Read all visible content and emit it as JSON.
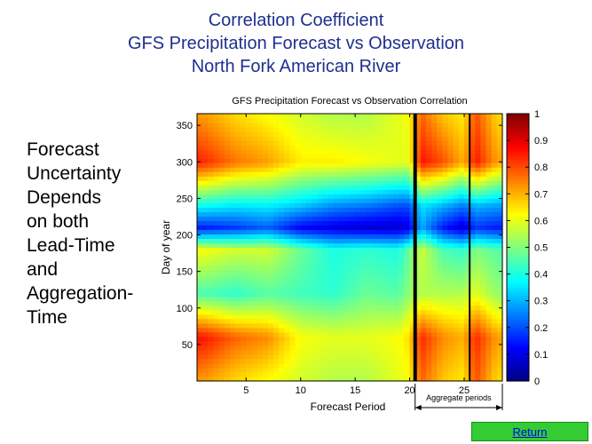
{
  "titles": {
    "line1": "Correlation Coefficient",
    "line2": "GFS Precipitation Forecast vs Observation",
    "line3": "North Fork American River"
  },
  "side_text": [
    "Forecast",
    "Uncertainty",
    "Depends",
    "on both",
    "Lead-Time",
    "and",
    "Aggregation-",
    "Time"
  ],
  "return_button": {
    "label": "Return"
  },
  "chart_data": {
    "type": "heatmap",
    "title": "GFS Precipitation Forecast vs Observation Correlation",
    "xlabel": "Forecast Period",
    "ylabel": "Day of year",
    "xlim": [
      0.5,
      28.5
    ],
    "ylim": [
      0,
      366
    ],
    "xticks": [
      5,
      10,
      15,
      20,
      25
    ],
    "yticks": [
      50,
      100,
      150,
      200,
      250,
      300,
      350
    ],
    "colorbar": {
      "min": 0,
      "max": 1,
      "ticks": [
        0,
        0.1,
        0.2,
        0.3,
        0.4,
        0.5,
        0.6,
        0.7,
        0.8,
        0.9,
        1
      ],
      "colormap": "jet"
    },
    "separators": [
      20.5,
      25.5
    ],
    "annotation": {
      "text": "Aggregate periods",
      "x_range": [
        20.5,
        28.5
      ]
    },
    "y_grid_days": [
      0,
      60,
      120,
      180,
      210,
      240,
      300,
      366
    ],
    "columns": [
      {
        "x": 1,
        "v": [
          0.72,
          0.86,
          0.45,
          0.62,
          0.15,
          0.38,
          0.84,
          0.72
        ]
      },
      {
        "x": 4,
        "v": [
          0.66,
          0.78,
          0.42,
          0.58,
          0.18,
          0.35,
          0.76,
          0.66
        ]
      },
      {
        "x": 7,
        "v": [
          0.62,
          0.74,
          0.46,
          0.58,
          0.22,
          0.36,
          0.72,
          0.62
        ]
      },
      {
        "x": 10,
        "v": [
          0.58,
          0.62,
          0.44,
          0.48,
          0.12,
          0.32,
          0.64,
          0.58
        ]
      },
      {
        "x": 13,
        "v": [
          0.55,
          0.6,
          0.42,
          0.4,
          0.1,
          0.26,
          0.64,
          0.55
        ]
      },
      {
        "x": 16,
        "v": [
          0.55,
          0.6,
          0.48,
          0.42,
          0.08,
          0.24,
          0.62,
          0.55
        ]
      },
      {
        "x": 19,
        "v": [
          0.6,
          0.62,
          0.46,
          0.4,
          0.08,
          0.2,
          0.6,
          0.6
        ]
      },
      {
        "x": 20,
        "v": [
          0.62,
          0.66,
          0.52,
          0.48,
          0.1,
          0.2,
          0.6,
          0.62
        ]
      },
      {
        "x": 21,
        "v": [
          0.78,
          0.84,
          0.55,
          0.58,
          0.3,
          0.35,
          0.86,
          0.78
        ]
      },
      {
        "x": 23,
        "v": [
          0.68,
          0.74,
          0.55,
          0.45,
          0.15,
          0.3,
          0.8,
          0.68
        ]
      },
      {
        "x": 25,
        "v": [
          0.64,
          0.7,
          0.55,
          0.42,
          0.08,
          0.24,
          0.7,
          0.64
        ]
      },
      {
        "x": 26,
        "v": [
          0.8,
          0.84,
          0.6,
          0.5,
          0.18,
          0.3,
          0.86,
          0.8
        ]
      },
      {
        "x": 28,
        "v": [
          0.66,
          0.72,
          0.52,
          0.46,
          0.15,
          0.28,
          0.72,
          0.66
        ]
      }
    ]
  }
}
